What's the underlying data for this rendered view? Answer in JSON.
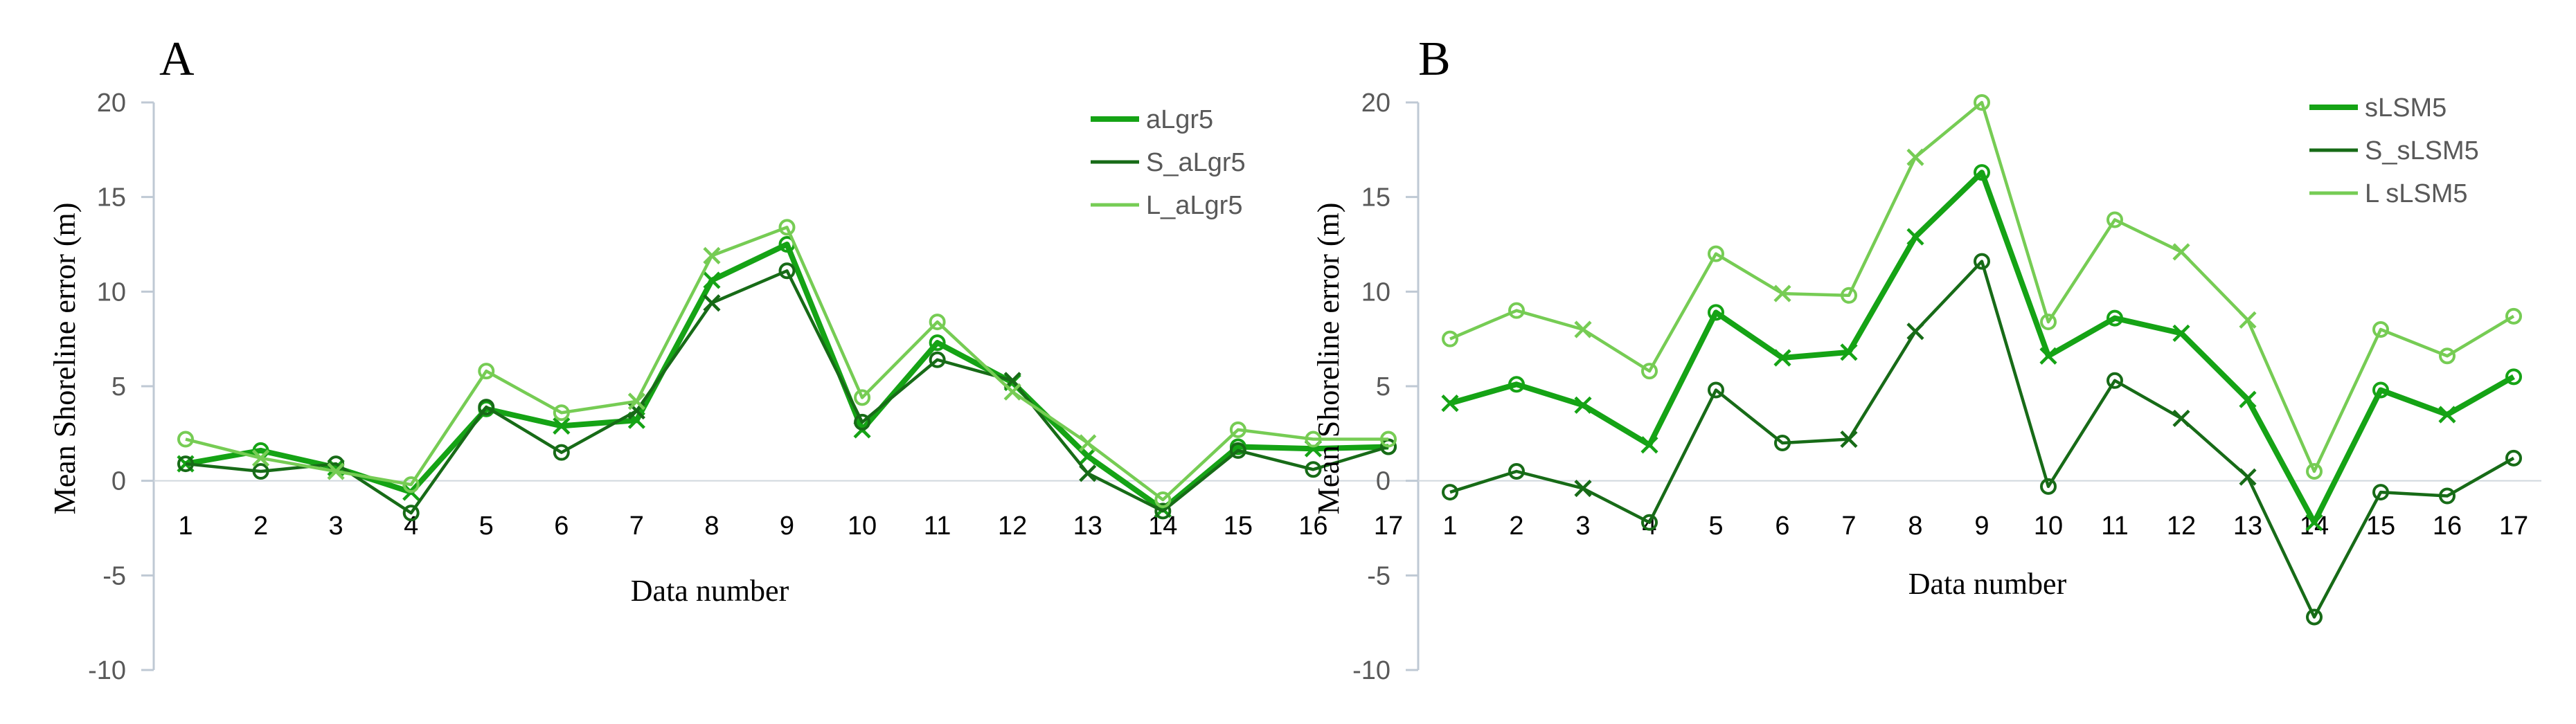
{
  "chart_data": [
    {
      "panel_label": "A",
      "type": "line",
      "title": "",
      "xlabel": "Data number",
      "ylabel": "Mean Shoreline error (m)",
      "ylim": [
        -10,
        20
      ],
      "yticks": [
        20,
        15,
        10,
        5,
        0,
        -5,
        -10
      ],
      "grid": false,
      "legend_position": "top-right",
      "categories": [
        "1",
        "2",
        "3",
        "4",
        "5",
        "6",
        "7",
        "8",
        "9",
        "10",
        "11",
        "12",
        "13",
        "14",
        "15",
        "16",
        "17"
      ],
      "series": [
        {
          "name": "aLgr5",
          "color": "#15a315",
          "width": "thick",
          "values": [
            0.9,
            1.6,
            0.7,
            -0.6,
            3.8,
            2.9,
            3.2,
            10.6,
            12.5,
            2.7,
            7.3,
            5.2,
            1.3,
            -1.5,
            1.8,
            1.7,
            1.8
          ]
        },
        {
          "name": "S_aLgr5",
          "color": "#176b17",
          "width": "thin",
          "values": [
            0.9,
            0.5,
            0.9,
            -1.7,
            3.9,
            1.5,
            3.7,
            9.4,
            11.1,
            3.1,
            6.4,
            5.3,
            0.4,
            -1.6,
            1.6,
            0.6,
            1.8
          ]
        },
        {
          "name": "L_aLgr5",
          "color": "#76cc54",
          "width": "thin",
          "values": [
            2.2,
            1.2,
            0.5,
            -0.2,
            5.8,
            3.6,
            4.2,
            11.9,
            13.4,
            4.4,
            8.4,
            4.7,
            2.0,
            -1.0,
            2.7,
            2.2,
            2.2
          ]
        }
      ]
    },
    {
      "panel_label": "B",
      "type": "line",
      "title": "",
      "xlabel": "Data number",
      "ylabel": "Mean Shoreline error (m)",
      "ylim": [
        -10,
        20
      ],
      "yticks": [
        20,
        15,
        10,
        5,
        0,
        -5,
        -10
      ],
      "grid": false,
      "legend_position": "top-right",
      "categories": [
        "1",
        "2",
        "3",
        "4",
        "5",
        "6",
        "7",
        "8",
        "9",
        "10",
        "11",
        "12",
        "13",
        "14",
        "15",
        "16",
        "17"
      ],
      "series": [
        {
          "name": "sLSM5",
          "color": "#15a315",
          "width": "thick",
          "values": [
            4.1,
            5.1,
            4.0,
            1.9,
            8.9,
            6.5,
            6.8,
            12.9,
            16.3,
            6.6,
            8.6,
            7.8,
            4.3,
            -2.2,
            4.8,
            3.5,
            5.5
          ]
        },
        {
          "name": "S_sLSM5",
          "color": "#176b17",
          "width": "thin",
          "values": [
            -0.6,
            0.5,
            -0.4,
            -2.2,
            4.8,
            2.0,
            2.2,
            7.9,
            11.6,
            -0.3,
            5.3,
            3.3,
            0.2,
            -7.2,
            -0.6,
            -0.8,
            1.2
          ]
        },
        {
          "name": "L  sLSM5",
          "color": "#76cc54",
          "width": "thin",
          "values": [
            7.5,
            9.0,
            8.0,
            5.8,
            12.0,
            9.9,
            9.8,
            17.1,
            20.0,
            8.4,
            13.8,
            12.1,
            8.5,
            0.5,
            8.0,
            6.6,
            8.7
          ]
        }
      ]
    }
  ]
}
